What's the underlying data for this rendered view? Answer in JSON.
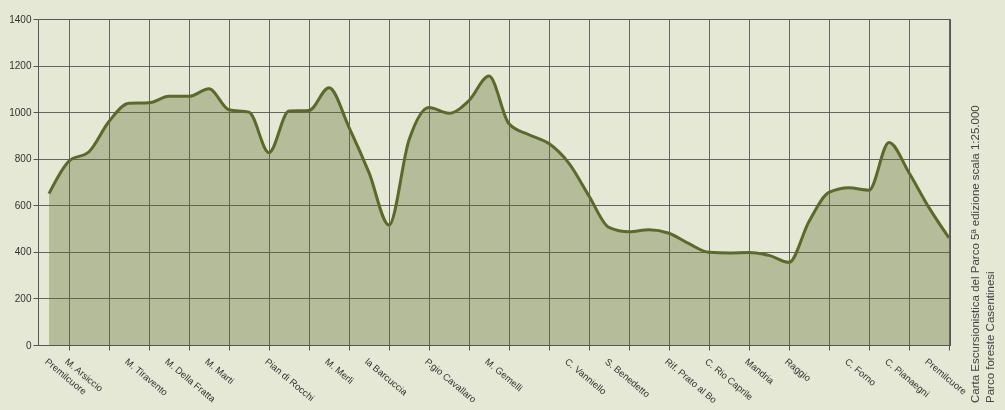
{
  "chart_data": {
    "type": "area",
    "categories": [
      "Premilcuore",
      "M. Arsiccio",
      null,
      null,
      "M. Tiravento",
      null,
      "M. Della Fratta",
      null,
      "M. Marti",
      null,
      null,
      "Pian di Rocchi",
      null,
      null,
      "M. Merli",
      null,
      "la Barcuccia",
      null,
      null,
      "P.gio Cavallaro",
      null,
      null,
      "M. Gemelli",
      null,
      null,
      null,
      "C. Vanniello",
      null,
      "S. Benedetto",
      null,
      null,
      "Rif. Prato al Bo",
      null,
      "C. Rio Caprile",
      null,
      "Mandria",
      null,
      "Raggio",
      null,
      null,
      "C. Forno",
      null,
      "C. Pianaegni",
      null,
      "Premilcuore",
      null
    ],
    "series": [
      {
        "color": "#5b6a2a",
        "values": [
          650,
          790,
          830,
          960,
          1038,
          1040,
          1068,
          1068,
          1100,
          1010,
          1000,
          826,
          1005,
          1007,
          1105,
          935,
          740,
          515,
          880,
          1020,
          995,
          1050,
          1155,
          950,
          903,
          865,
          780,
          640,
          505,
          486,
          495,
          480,
          435,
          398,
          395,
          397,
          385,
          355,
          530,
          655,
          675,
          665,
          870,
          740,
          590,
          460
        ]
      }
    ],
    "ylim": [
      0,
      1400
    ],
    "yticks": [
      0,
      200,
      400,
      600,
      800,
      1000,
      1200,
      1400
    ],
    "grid": true,
    "annotations": [
      "Carta Escursionistica del Parco 5ª edizione scala 1:25.000",
      "Parco foreste Casentinesi"
    ]
  }
}
